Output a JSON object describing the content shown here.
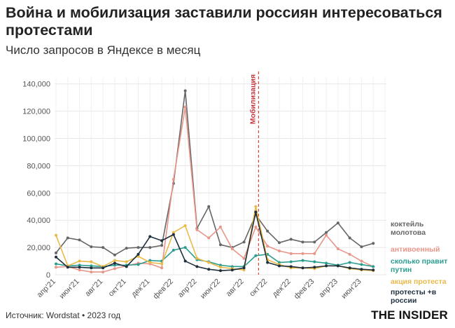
{
  "header": {
    "title": "Война и мобилизация заставили россиян интересоваться протестами",
    "subtitle": "Число запросов в Яндексе в месяц"
  },
  "footer": {
    "source": "Источник: Wordstat • 2023 год",
    "brand": "THE INSIDER"
  },
  "colors": {
    "коктейль молотова": "#666666",
    "антивоенный": "#e8968a",
    "сколько правит путин": "#2a9d8f",
    "акция протеста": "#e9b949",
    "протесты +в россии": "#1f2f3d",
    "mobilization_line": "#d9473f"
  },
  "chart_data": {
    "type": "line",
    "x": [
      "апр'21",
      "май'21",
      "июн'21",
      "июл'21",
      "авг'21",
      "сен'21",
      "окт'21",
      "ноя'21",
      "дек'21",
      "янв'22",
      "фев'22",
      "мар'22",
      "апр'22",
      "май'22",
      "июн'22",
      "июл'22",
      "авг'22",
      "сен'22",
      "окт'22",
      "ноя'22",
      "дек'22",
      "янв'23",
      "фев'23",
      "мар'23",
      "апр'23",
      "май'23",
      "июн'23",
      "июл'23",
      "авг'23"
    ],
    "x_tick_labels": [
      "апр'21",
      "июн'21",
      "авг'21",
      "окт'21",
      "дек'21",
      "фев'22",
      "апр'22",
      "июн'22",
      "авг'22",
      "окт'22",
      "дек'22",
      "фев'23",
      "апр'23",
      "июн'23"
    ],
    "y_ticks": [
      0,
      20000,
      40000,
      60000,
      80000,
      100000,
      120000,
      140000
    ],
    "y_tick_labels": [
      "0",
      "20,000",
      "40,000",
      "60,000",
      "80,000",
      "100,000",
      "120,000",
      "140,000"
    ],
    "ylim": [
      0,
      145000
    ],
    "grid": true,
    "annotation": {
      "label": "Мобилизация",
      "x": "сен'22"
    },
    "series": [
      {
        "name": "коктейль молотова",
        "label_lines": [
          "коктейль",
          "молотова"
        ],
        "values": [
          16000,
          27000,
          25500,
          20500,
          20000,
          14500,
          19500,
          20000,
          20000,
          21500,
          67000,
          135000,
          34000,
          50000,
          22000,
          20000,
          24000,
          44000,
          32000,
          23500,
          26000,
          24000,
          24000,
          31000,
          38000,
          27000,
          20500,
          23000,
          null
        ]
      },
      {
        "name": "антивоенный",
        "label_lines": [
          "антивоенный"
        ],
        "values": [
          5500,
          6000,
          3500,
          2000,
          2000,
          4500,
          6500,
          8500,
          8000,
          5000,
          70000,
          123000,
          33000,
          27000,
          35000,
          19000,
          12000,
          35000,
          21000,
          17500,
          15500,
          15500,
          15500,
          29000,
          19000,
          15000,
          10000,
          6000,
          null
        ]
      },
      {
        "name": "сколько правит путин",
        "label_lines": [
          "сколько правит",
          "путин"
        ],
        "values": [
          8000,
          6500,
          7000,
          6500,
          6000,
          7000,
          7000,
          7500,
          10500,
          10000,
          18000,
          20000,
          11000,
          9500,
          7000,
          6000,
          6000,
          14000,
          15000,
          9000,
          9500,
          10500,
          9500,
          8500,
          7000,
          9000,
          7500,
          6000,
          null
        ]
      },
      {
        "name": "акция протеста",
        "label_lines": [
          "акция протеста"
        ],
        "values": [
          29000,
          6500,
          10000,
          9500,
          6000,
          10500,
          9500,
          13500,
          9000,
          8000,
          31000,
          36000,
          12000,
          9000,
          5500,
          4500,
          3500,
          50000,
          11000,
          7500,
          5000,
          5000,
          4500,
          6500,
          6500,
          4500,
          3500,
          3000,
          null
        ]
      },
      {
        "name": "протесты +в россии",
        "label_lines": [
          "протесты +в",
          "россии"
        ],
        "values": [
          13000,
          5500,
          5500,
          5000,
          5000,
          8500,
          6000,
          15000,
          28000,
          25000,
          29500,
          10000,
          6000,
          4000,
          3000,
          3500,
          5000,
          46000,
          9000,
          6500,
          6000,
          5000,
          5500,
          6500,
          6500,
          5000,
          4000,
          3500,
          null
        ]
      }
    ]
  }
}
